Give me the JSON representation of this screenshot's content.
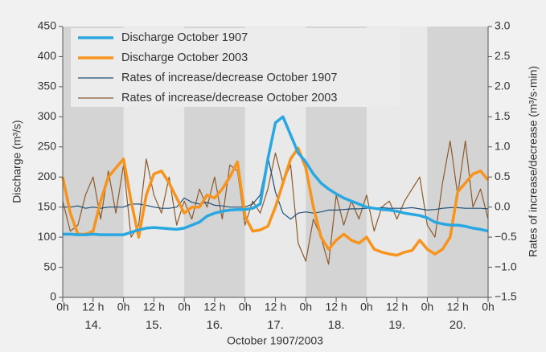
{
  "chart_data": {
    "type": "line",
    "xlabel": "October 1907/2003",
    "ylabel": "Discharge (m³/s)",
    "y2label": "Rates of increase/decrease (m³/s·min)",
    "x": [
      0,
      3,
      6,
      9,
      12,
      15,
      18,
      21,
      24,
      27,
      30,
      33,
      36,
      39,
      42,
      45,
      48,
      51,
      54,
      57,
      60,
      63,
      66,
      69,
      72,
      75,
      78,
      81,
      84,
      87,
      90,
      93,
      96,
      99,
      102,
      105,
      108,
      111,
      114,
      117,
      120,
      123,
      126,
      129,
      132,
      135,
      138,
      141,
      144,
      147,
      150,
      153,
      156,
      159,
      162,
      165,
      168
    ],
    "xlim": [
      0,
      168
    ],
    "xticks": [
      {
        "value": 0,
        "label": "0h"
      },
      {
        "value": 12,
        "label": "12 h"
      },
      {
        "value": 24,
        "label": "0h"
      },
      {
        "value": 36,
        "label": "12 h"
      },
      {
        "value": 48,
        "label": "0h"
      },
      {
        "value": 60,
        "label": "12 h"
      },
      {
        "value": 72,
        "label": "0h"
      },
      {
        "value": 84,
        "label": "12 h"
      },
      {
        "value": 96,
        "label": "0h"
      },
      {
        "value": 108,
        "label": "12 h"
      },
      {
        "value": 120,
        "label": "0h"
      },
      {
        "value": 132,
        "label": "12 h"
      },
      {
        "value": 144,
        "label": "0h"
      },
      {
        "value": 156,
        "label": "12 h"
      },
      {
        "value": 168,
        "label": "0h"
      }
    ],
    "day_labels": [
      {
        "value": 12,
        "label": "14."
      },
      {
        "value": 36,
        "label": "15."
      },
      {
        "value": 60,
        "label": "16."
      },
      {
        "value": 84,
        "label": "17."
      },
      {
        "value": 108,
        "label": "18."
      },
      {
        "value": 132,
        "label": "19."
      },
      {
        "value": 156,
        "label": "20."
      }
    ],
    "ylim": [
      0,
      450
    ],
    "yticks": [
      0,
      50,
      100,
      150,
      200,
      250,
      300,
      350,
      400,
      450
    ],
    "y2lim": [
      -1.5,
      3
    ],
    "y2ticks": [
      {
        "value": -1.5,
        "label": "−1.5"
      },
      {
        "value": -1,
        "label": "−1.0"
      },
      {
        "value": -0.5,
        "label": "−0.5"
      },
      {
        "value": 0,
        "label": "0.0"
      },
      {
        "value": 0.5,
        "label": "0.5"
      },
      {
        "value": 1,
        "label": "1.0"
      },
      {
        "value": 1.5,
        "label": "1.5"
      },
      {
        "value": 2,
        "label": "2.0"
      },
      {
        "value": 2.5,
        "label": "2.5"
      },
      {
        "value": 3,
        "label": "3.0"
      }
    ],
    "series": [
      {
        "name": "Discharge October 1907",
        "color": "#29a7e1",
        "width": 3.5,
        "values": [
          105,
          105,
          104,
          104,
          105,
          104,
          104,
          104,
          104,
          108,
          112,
          115,
          116,
          115,
          114,
          113,
          115,
          120,
          125,
          135,
          140,
          143,
          145,
          146,
          146,
          148,
          155,
          230,
          290,
          300,
          270,
          240,
          225,
          205,
          190,
          180,
          172,
          165,
          160,
          155,
          150,
          148,
          146,
          145,
          143,
          140,
          138,
          136,
          132,
          125,
          122,
          120,
          120,
          118,
          115,
          113,
          110
        ]
      },
      {
        "name": "Discharge October 2003",
        "color": "#f7941d",
        "width": 3.5,
        "values": [
          200,
          140,
          105,
          105,
          110,
          160,
          200,
          215,
          230,
          160,
          100,
          170,
          205,
          210,
          190,
          165,
          140,
          150,
          150,
          170,
          165,
          180,
          200,
          225,
          135,
          110,
          112,
          118,
          150,
          190,
          230,
          248,
          215,
          150,
          100,
          80,
          95,
          105,
          95,
          90,
          100,
          80,
          75,
          72,
          70,
          75,
          78,
          95,
          80,
          72,
          80,
          100,
          175,
          190,
          205,
          210,
          195
        ]
      },
      {
        "name": "Rates of increase/decrease October 1907",
        "color": "#1f4e79",
        "width": 1.2,
        "axis": "y2",
        "values": [
          0,
          0,
          0.02,
          -0.02,
          0,
          -0.02,
          0,
          0,
          0,
          0.05,
          0.05,
          0.03,
          0,
          -0.02,
          -0.02,
          0,
          0.15,
          0.08,
          0.05,
          0.08,
          0.03,
          0.02,
          0,
          0,
          0,
          0.05,
          0.2,
          0.84,
          0.25,
          -0.1,
          -0.2,
          -0.1,
          -0.08,
          -0.1,
          -0.08,
          -0.05,
          -0.05,
          -0.04,
          -0.03,
          -0.03,
          -0.02,
          -0.02,
          -0.01,
          -0.02,
          -0.02,
          -0.02,
          -0.01,
          -0.03,
          -0.05,
          -0.04,
          -0.02,
          -0.01,
          -0.01,
          -0.02,
          -0.02,
          -0.02,
          -0.03
        ]
      },
      {
        "name": "Rates of increase/decrease October 2003",
        "color": "#8b5a2b",
        "width": 1.2,
        "axis": "y2",
        "values": [
          0.1,
          -0.4,
          -0.3,
          0.2,
          0.5,
          -0.2,
          0.6,
          -0.1,
          0.7,
          -0.5,
          -0.3,
          0.8,
          0.2,
          -0.1,
          0.5,
          -0.3,
          0.1,
          -0.2,
          0.3,
          0,
          0.5,
          -0.2,
          0.7,
          0.6,
          -0.3,
          0.1,
          -0.1,
          0.3,
          0.9,
          0.4,
          0.7,
          -0.6,
          -0.9,
          -0.2,
          -0.5,
          -0.95,
          0.2,
          -0.3,
          0.1,
          -0.2,
          0.2,
          -0.4,
          0,
          0.1,
          -0.2,
          0.1,
          0.3,
          0.5,
          -0.3,
          -0.5,
          0.4,
          1.1,
          0.2,
          1.1,
          0,
          0.3,
          -0.2
        ]
      }
    ]
  }
}
